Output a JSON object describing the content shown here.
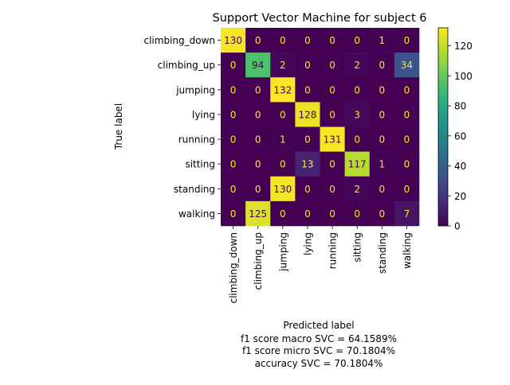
{
  "chart_data": {
    "type": "heatmap",
    "title": "Support Vector Machine for subject 6",
    "xlabel": "Predicted label",
    "ylabel": "True label",
    "x_categories": [
      "climbing_down",
      "climbing_up",
      "jumping",
      "lying",
      "running",
      "sitting",
      "standing",
      "walking"
    ],
    "y_categories": [
      "climbing_down",
      "climbing_up",
      "jumping",
      "lying",
      "running",
      "sitting",
      "standing",
      "walking"
    ],
    "matrix": [
      [
        130,
        0,
        0,
        0,
        0,
        0,
        1,
        0
      ],
      [
        0,
        94,
        2,
        0,
        0,
        2,
        0,
        34
      ],
      [
        0,
        0,
        132,
        0,
        0,
        0,
        0,
        0
      ],
      [
        0,
        0,
        0,
        128,
        0,
        3,
        0,
        0
      ],
      [
        0,
        0,
        1,
        0,
        131,
        0,
        0,
        0
      ],
      [
        0,
        0,
        0,
        13,
        0,
        117,
        1,
        0
      ],
      [
        0,
        0,
        130,
        0,
        0,
        2,
        0,
        0
      ],
      [
        0,
        125,
        0,
        0,
        0,
        0,
        0,
        7
      ]
    ],
    "colormap": "viridis",
    "color_range": [
      0,
      132
    ],
    "colorbar_ticks": [
      0,
      20,
      40,
      60,
      80,
      100,
      120
    ],
    "footer_lines": [
      "f1 score macro SVC = 64.1589%",
      "f1 score micro SVC = 70.1804%",
      "accuracy SVC = 70.1804%"
    ],
    "grid": false
  }
}
